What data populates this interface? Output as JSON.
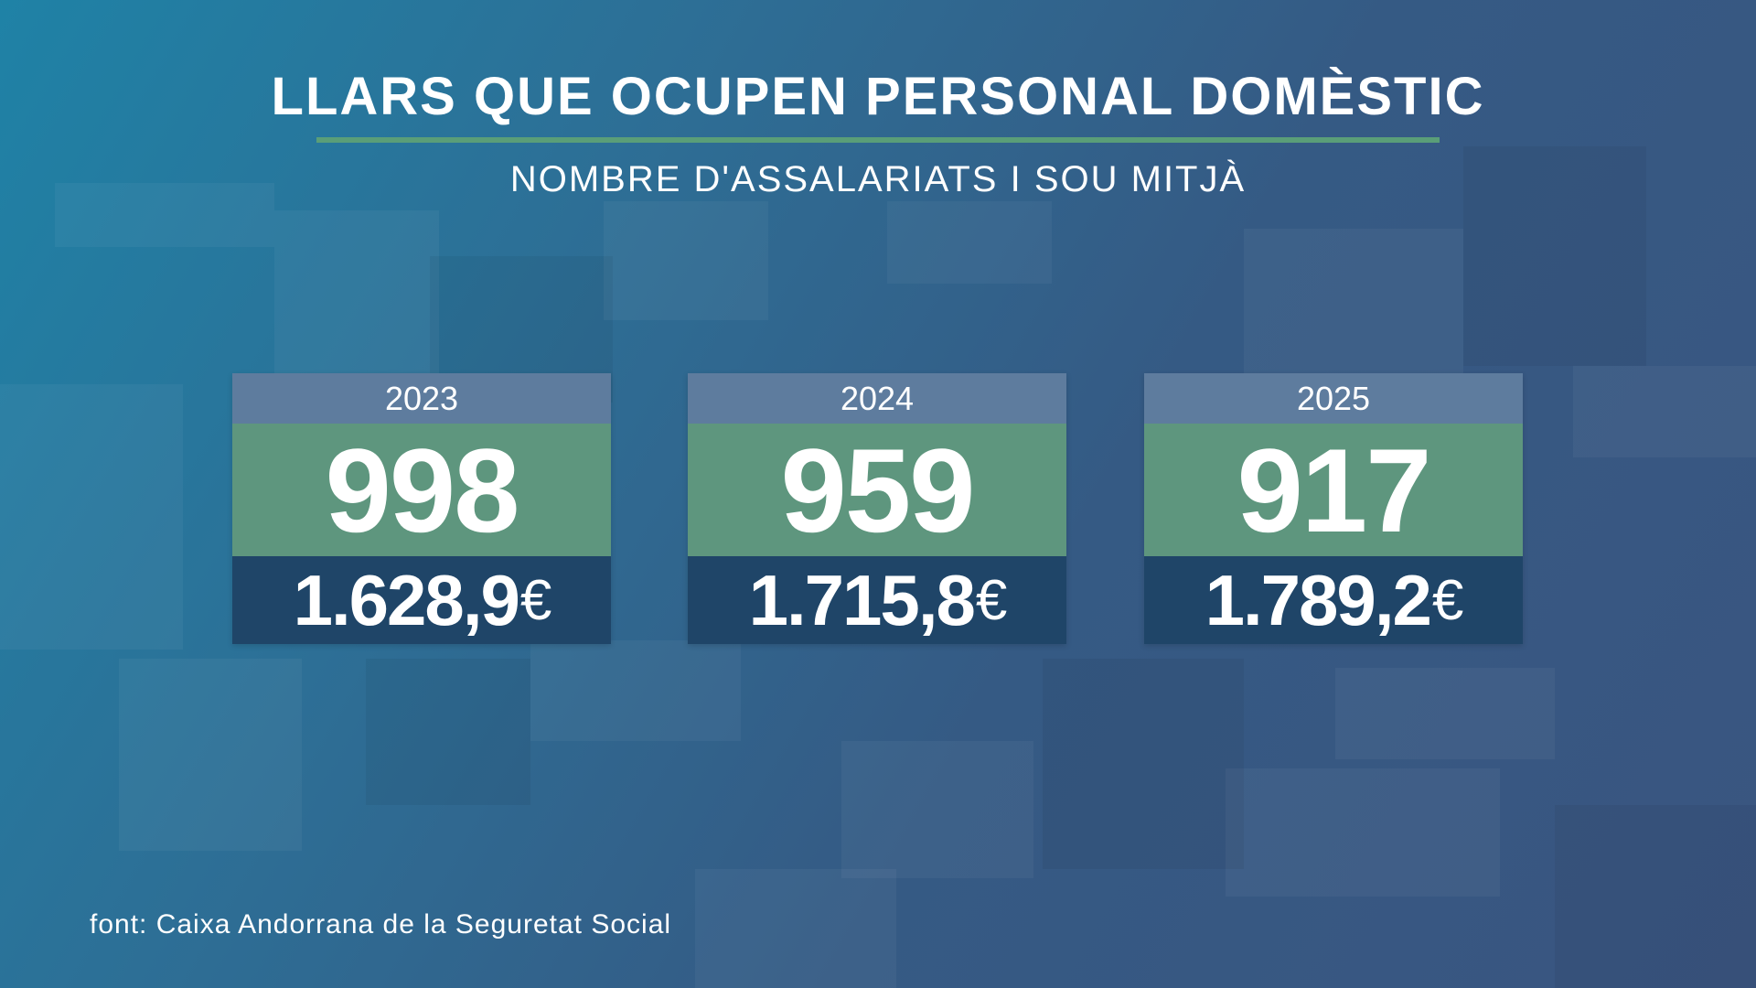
{
  "title": "LLARS QUE OCUPEN PERSONAL DOMÈSTIC",
  "subtitle": "NOMBRE D'ASSALARIATS I SOU MITJÀ",
  "cards": [
    {
      "year": "2023",
      "count": "998",
      "salary": "1.628,9",
      "currency": "€"
    },
    {
      "year": "2024",
      "count": "959",
      "salary": "1.715,8",
      "currency": "€"
    },
    {
      "year": "2025",
      "count": "917",
      "salary": "1.789,2",
      "currency": "€"
    }
  ],
  "source": "font: Caixa Andorrana de la Seguretat Social",
  "colors": {
    "accent_rule": "#5a9e78",
    "year_band": "#5e7c9e",
    "count_band": "#5e967e",
    "salary_band": "#1f4568"
  }
}
